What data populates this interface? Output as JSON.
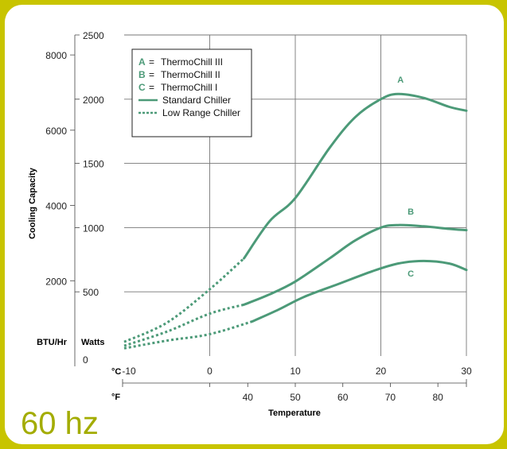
{
  "footer_text": "60 hz",
  "chart_data": {
    "type": "line",
    "title": "",
    "ylabel": "Cooling Capacity",
    "xlabel": "Temperature",
    "unit_labels": {
      "btu": "BTU/Hr",
      "watts": "Watts",
      "celsius": "°C",
      "fahrenheit": "°F"
    },
    "x_celsius": {
      "range": [
        -10,
        30
      ],
      "ticks": [
        "-10",
        "0",
        "10",
        "20",
        "30"
      ]
    },
    "x_fahrenheit": {
      "ticks": [
        "40",
        "50",
        "60",
        "70",
        "80"
      ],
      "values": [
        40,
        50,
        60,
        70,
        80
      ]
    },
    "y_watts": {
      "range": [
        0,
        2500
      ],
      "ticks": [
        "0",
        "500",
        "1000",
        "1500",
        "2000",
        "2500"
      ],
      "values": [
        0,
        500,
        1000,
        1500,
        2000,
        2500
      ]
    },
    "y_btu": {
      "ticks": [
        "2000",
        "4000",
        "6000",
        "8000"
      ],
      "values": [
        2000,
        4000,
        6000,
        8000
      ]
    },
    "grid": true,
    "legend": {
      "placement": "top-left",
      "items": [
        {
          "key": "A",
          "eq": "=",
          "label": "ThermoChill III"
        },
        {
          "key": "B",
          "eq": "=",
          "label": "ThermoChill II"
        },
        {
          "key": "C",
          "eq": "=",
          "label": "ThermoChill I"
        },
        {
          "style": "solid",
          "label": "Standard Chiller"
        },
        {
          "style": "dashed",
          "label": "Low Range Chiller"
        }
      ]
    },
    "series": [
      {
        "name": "A",
        "color": "#4c9a78",
        "low_range": [
          [
            -10,
            110
          ],
          [
            -5,
            260
          ],
          [
            0,
            520
          ],
          [
            4,
            760
          ]
        ],
        "standard": [
          [
            4,
            760
          ],
          [
            7,
            1050
          ],
          [
            10,
            1230
          ],
          [
            14,
            1620
          ],
          [
            17,
            1860
          ],
          [
            20,
            2000
          ],
          [
            22,
            2040
          ],
          [
            25,
            2010
          ],
          [
            28,
            1940
          ],
          [
            30,
            1910
          ]
        ],
        "label_at": [
          22.3,
          2130
        ]
      },
      {
        "name": "B",
        "color": "#4c9a78",
        "low_range": [
          [
            -10,
            80
          ],
          [
            -5,
            190
          ],
          [
            0,
            330
          ],
          [
            4,
            400
          ]
        ],
        "standard": [
          [
            4,
            400
          ],
          [
            7,
            480
          ],
          [
            10,
            580
          ],
          [
            14,
            760
          ],
          [
            17,
            900
          ],
          [
            20,
            1000
          ],
          [
            22,
            1020
          ],
          [
            25,
            1010
          ],
          [
            28,
            990
          ],
          [
            30,
            980
          ]
        ],
        "label_at": [
          23.5,
          1100
        ]
      },
      {
        "name": "C",
        "color": "#4c9a78",
        "low_range": [
          [
            -10,
            60
          ],
          [
            -5,
            120
          ],
          [
            0,
            170
          ],
          [
            5,
            270
          ]
        ],
        "standard": [
          [
            5,
            270
          ],
          [
            8,
            360
          ],
          [
            11,
            460
          ],
          [
            15,
            560
          ],
          [
            19,
            660
          ],
          [
            22,
            720
          ],
          [
            25,
            740
          ],
          [
            28,
            720
          ],
          [
            30,
            670
          ]
        ],
        "label_at": [
          23.5,
          620
        ]
      }
    ]
  }
}
